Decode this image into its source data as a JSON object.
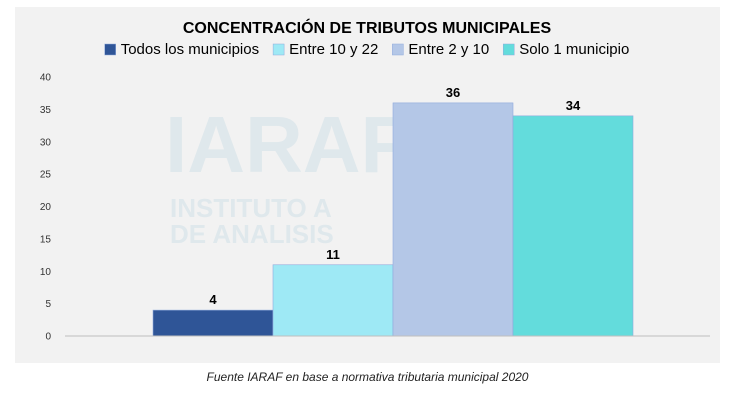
{
  "watermark": {
    "line1": "IARAF",
    "line2": "INSTITUTO A",
    "line3": "DE ANALISIS"
  },
  "source_note": "Fuente IARAF en base a normativa tributaria  municipal 2020",
  "chart_data": {
    "type": "bar",
    "title": "CONCENTRACIÓN DE TRIBUTOS MUNICIPALES",
    "xlabel": "",
    "ylabel": "",
    "ylim": [
      0,
      40
    ],
    "yticks": [
      "0",
      "5",
      "10",
      "15",
      "20",
      "25",
      "30",
      "35",
      "40"
    ],
    "grid": false,
    "legend": "top",
    "series": [
      {
        "name": "Todos los municipios",
        "values": [
          4
        ],
        "label": "4",
        "color": "#2f5597"
      },
      {
        "name": "Entre 10 y 22",
        "values": [
          11
        ],
        "label": "11",
        "color": "#9ee9f5"
      },
      {
        "name": "Entre 2 y 10",
        "values": [
          36
        ],
        "label": "36",
        "color": "#b4c7e7"
      },
      {
        "name": "Solo 1 municipio",
        "values": [
          34
        ],
        "label": "34",
        "color": "#63dcdc"
      }
    ]
  }
}
